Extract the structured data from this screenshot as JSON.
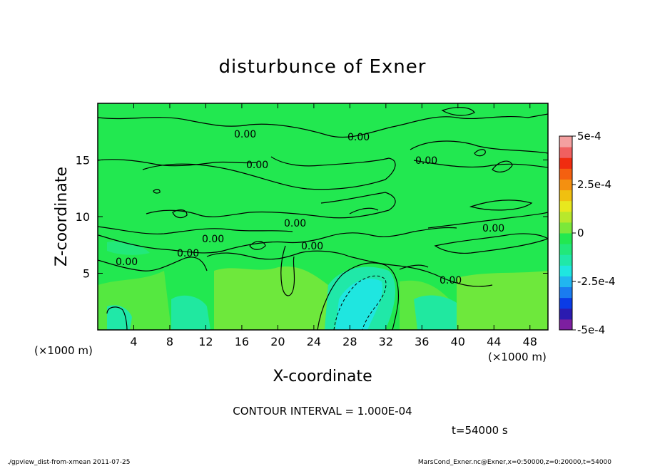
{
  "chart_data": {
    "type": "heatmap",
    "title": "disturbunce of Exner",
    "xlabel": "X-coordinate",
    "ylabel": "Z-coordinate",
    "x_unit_left": "(×1000 m)",
    "x_unit_right": "(×1000 m)",
    "xlim": [
      0,
      50
    ],
    "ylim": [
      0,
      20
    ],
    "xticks": [
      4,
      8,
      12,
      16,
      20,
      24,
      28,
      32,
      36,
      40,
      44,
      48
    ],
    "yticks": [
      5,
      10,
      15
    ],
    "colorbar": {
      "range": [
        -0.0005,
        0.0005
      ],
      "tick_values": [
        0.0005,
        0.00025,
        0,
        -0.00025,
        -0.0005
      ],
      "tick_labels": [
        "5e-4",
        "2.5e-4",
        "0",
        "-2.5e-4",
        "-5e-4"
      ],
      "colors": [
        "#7d1fa0",
        "#2b1bb0",
        "#0a3be6",
        "#1a7cf0",
        "#21b6f0",
        "#1fe6e0",
        "#20e8a8",
        "#22e87a",
        "#22e850",
        "#7be83a",
        "#b8e82c",
        "#e8e81e",
        "#f0c010",
        "#f49010",
        "#f46010",
        "#f02c10",
        "#f06060",
        "#f4a0a0"
      ]
    },
    "contour_levels": [
      "0.00",
      "0.00",
      "0.00",
      "0.00",
      "0.00",
      "0.00",
      "0.00",
      "0.00",
      "0.00",
      "0.00",
      "0.00"
    ],
    "contour_interval_text": "CONTOUR INTERVAL = 1.000E-04",
    "time_text": "t=54000 s"
  },
  "footer": {
    "left": "./gpview_dist-from-xmean  2011-07-25",
    "right": "MarsCond_Exner.nc@Exner,x=0:50000,z=0:20000,t=54000"
  }
}
